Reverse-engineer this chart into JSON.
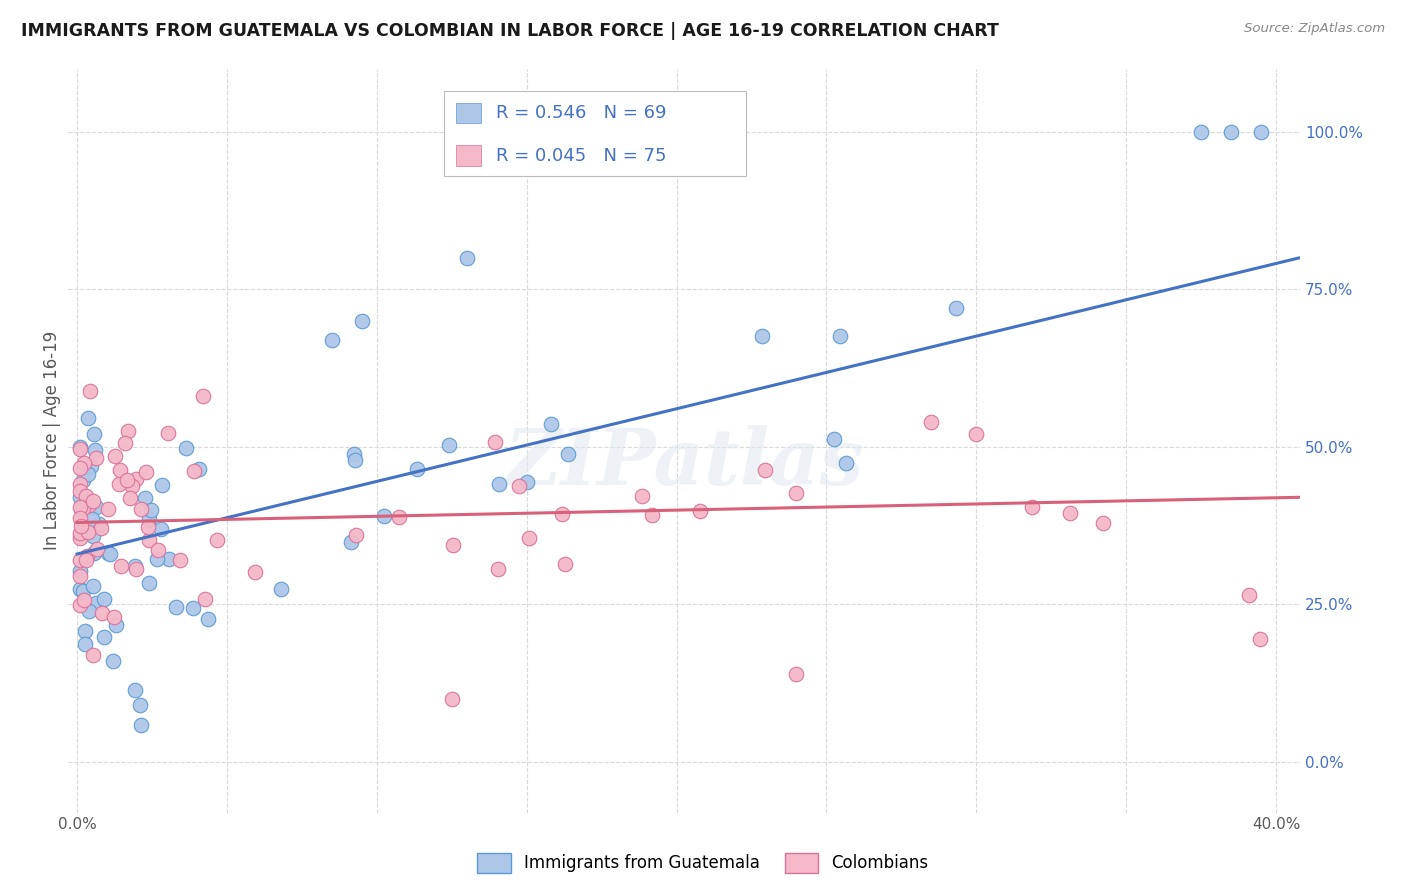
{
  "title": "IMMIGRANTS FROM GUATEMALA VS COLOMBIAN IN LABOR FORCE | AGE 16-19 CORRELATION CHART",
  "source": "Source: ZipAtlas.com",
  "ylabel": "In Labor Force | Age 16-19",
  "xlim": [
    -0.003,
    0.408
  ],
  "ylim": [
    -0.08,
    1.1
  ],
  "guatemala_R": 0.546,
  "guatemala_N": 69,
  "colombian_R": 0.045,
  "colombian_N": 75,
  "guatemala_color": "#aec6e8",
  "guatemala_edge_color": "#5b9bd5",
  "colombian_color": "#f4b8c8",
  "colombian_edge_color": "#d9729a",
  "trendline_guatemala_color": "#4472c4",
  "trendline_colombian_color": "#d9607a",
  "background_color": "#ffffff",
  "watermark": "ZIPatlas",
  "legend_guatemala_label": "Immigrants from Guatemala",
  "legend_colombian_label": "Colombians",
  "trendline_g_x0": 0.0,
  "trendline_g_y0": 0.33,
  "trendline_g_x1": 0.408,
  "trendline_g_y1": 0.8,
  "trendline_c_x0": 0.0,
  "trendline_c_y0": 0.38,
  "trendline_c_x1": 0.408,
  "trendline_c_y1": 0.42,
  "scatter_size": 110,
  "right_axis_color": "#4472c4",
  "grid_color": "#d9d9d9",
  "text_color": "#595959",
  "legend_text_color": "#4472c4"
}
